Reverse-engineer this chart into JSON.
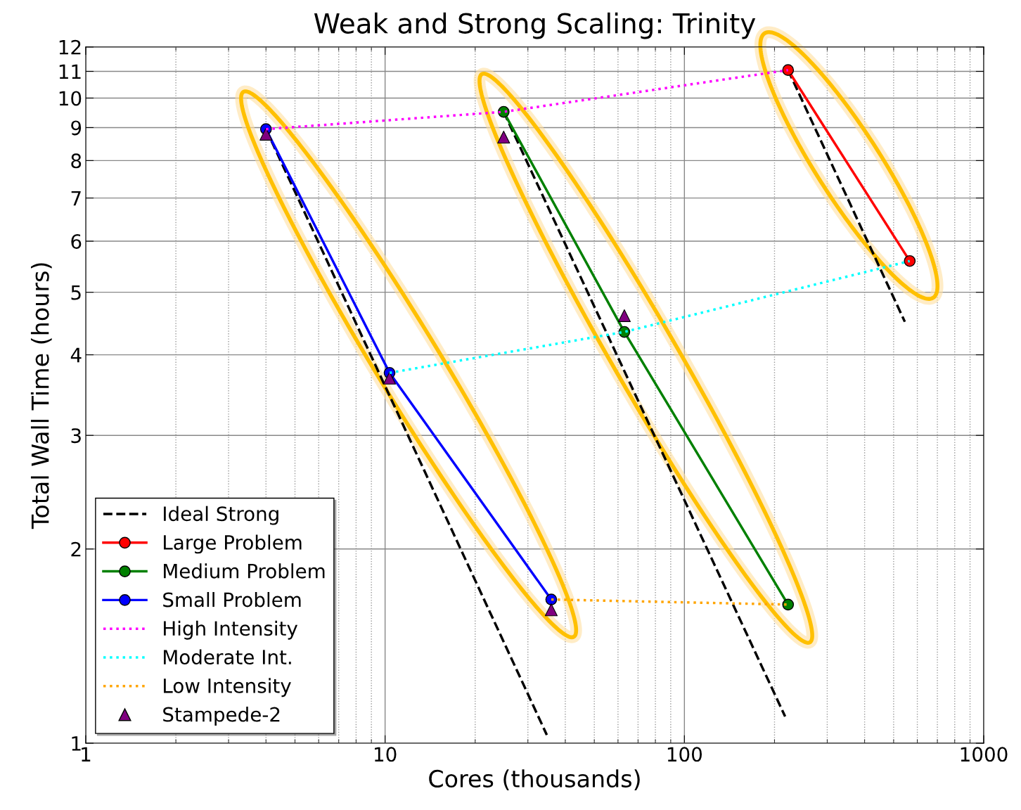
{
  "chart_data": {
    "type": "line",
    "title": "Weak and Strong Scaling: Trinity",
    "xlabel": "Cores (thousands)",
    "ylabel": "Total Wall Time (hours)",
    "log": "xy",
    "xlim": [
      1,
      1000
    ],
    "xticks": [
      1,
      10,
      100,
      1000
    ],
    "ylim": [
      1,
      12
    ],
    "yticks": [
      1,
      2,
      3,
      4,
      5,
      6,
      7,
      8,
      9,
      10,
      11,
      12
    ],
    "grid": true,
    "legend": "bottom left",
    "series": [
      {
        "name": "Ideal Strong",
        "color": "#000000",
        "line_style": "dashed",
        "x": [
          4,
          34.7
        ],
        "values": [
          8.95,
          1.03
        ]
      },
      {
        "color": "#000000",
        "line_style": "dashed",
        "x": [
          24.9,
          217
        ],
        "values": [
          9.52,
          1.1
        ]
      },
      {
        "color": "#000000",
        "line_style": "dashed",
        "x": [
          222,
          545
        ],
        "values": [
          11.05,
          4.5
        ]
      },
      {
        "name": "Large Problem",
        "color": "#ff0000",
        "line_style": "solid",
        "marker": "circle",
        "x": [
          222,
          566
        ],
        "values": [
          11.05,
          5.59
        ]
      },
      {
        "name": "Medium Problem",
        "color": "#008000",
        "line_style": "solid",
        "marker": "circle",
        "x": [
          24.9,
          63,
          222
        ],
        "values": [
          9.52,
          4.34,
          1.64
        ]
      },
      {
        "name": "Small Problem",
        "color": "#0000ff",
        "line_style": "solid",
        "marker": "circle",
        "x": [
          4,
          10.35,
          35.9
        ],
        "values": [
          8.95,
          3.75,
          1.67
        ]
      },
      {
        "name": "High Intensity",
        "color": "#ff00ff",
        "line_style": "dotted",
        "marker": "none",
        "x": [
          4,
          24.9,
          222
        ],
        "values": [
          8.95,
          9.52,
          11.05
        ]
      },
      {
        "name": "Moderate Int.",
        "color": "#00ffff",
        "line_style": "dotted",
        "marker": "none",
        "x": [
          10.35,
          63,
          566
        ],
        "values": [
          3.75,
          4.34,
          5.59
        ]
      },
      {
        "name": "Low Intensity",
        "color": "#ffa500",
        "line_style": "dotted",
        "marker": "none",
        "x": [
          35.9,
          222
        ],
        "values": [
          1.67,
          1.64
        ]
      },
      {
        "name": "Stampede-2",
        "type": "scatter",
        "color": "#800080",
        "marker": "triangle",
        "x": [
          4,
          10.35,
          35.9,
          24.9,
          63
        ],
        "values": [
          8.79,
          3.68,
          1.61,
          8.7,
          4.6
        ]
      }
    ]
  }
}
